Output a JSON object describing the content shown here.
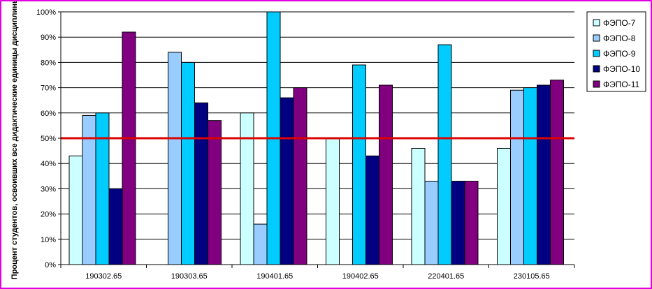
{
  "chart_data": {
    "type": "bar",
    "title": "",
    "xlabel": "",
    "ylabel": "Процент студентов, освоивших все дидактические единицы дисциплины",
    "ylim": [
      0,
      100
    ],
    "y_unit": "%",
    "y_ticks": [
      "0%",
      "10%",
      "20%",
      "30%",
      "40%",
      "50%",
      "60%",
      "70%",
      "80%",
      "90%",
      "100%"
    ],
    "categories": [
      "190302.65",
      "190303.65",
      "190401.65",
      "190402.65",
      "220401.65",
      "230105.65"
    ],
    "series": [
      {
        "name": "ФЭПО-7",
        "color": "#ccffff",
        "values": [
          43,
          null,
          60,
          50,
          46,
          46
        ]
      },
      {
        "name": "ФЭПО-8",
        "color": "#99ccff",
        "values": [
          59,
          84,
          16,
          null,
          33,
          69
        ]
      },
      {
        "name": "ФЭПО-9",
        "color": "#00ccff",
        "values": [
          60,
          80,
          100,
          79,
          87,
          70
        ]
      },
      {
        "name": "ФЭПО-10",
        "color": "#000080",
        "values": [
          30,
          64,
          66,
          43,
          33,
          71
        ]
      },
      {
        "name": "ФЭПО-11",
        "color": "#800080",
        "values": [
          92,
          57,
          70,
          71,
          33,
          73
        ]
      }
    ],
    "reference_line": {
      "value": 50,
      "color": "#dd0000"
    },
    "grid": true,
    "legend_position": "top-right"
  }
}
